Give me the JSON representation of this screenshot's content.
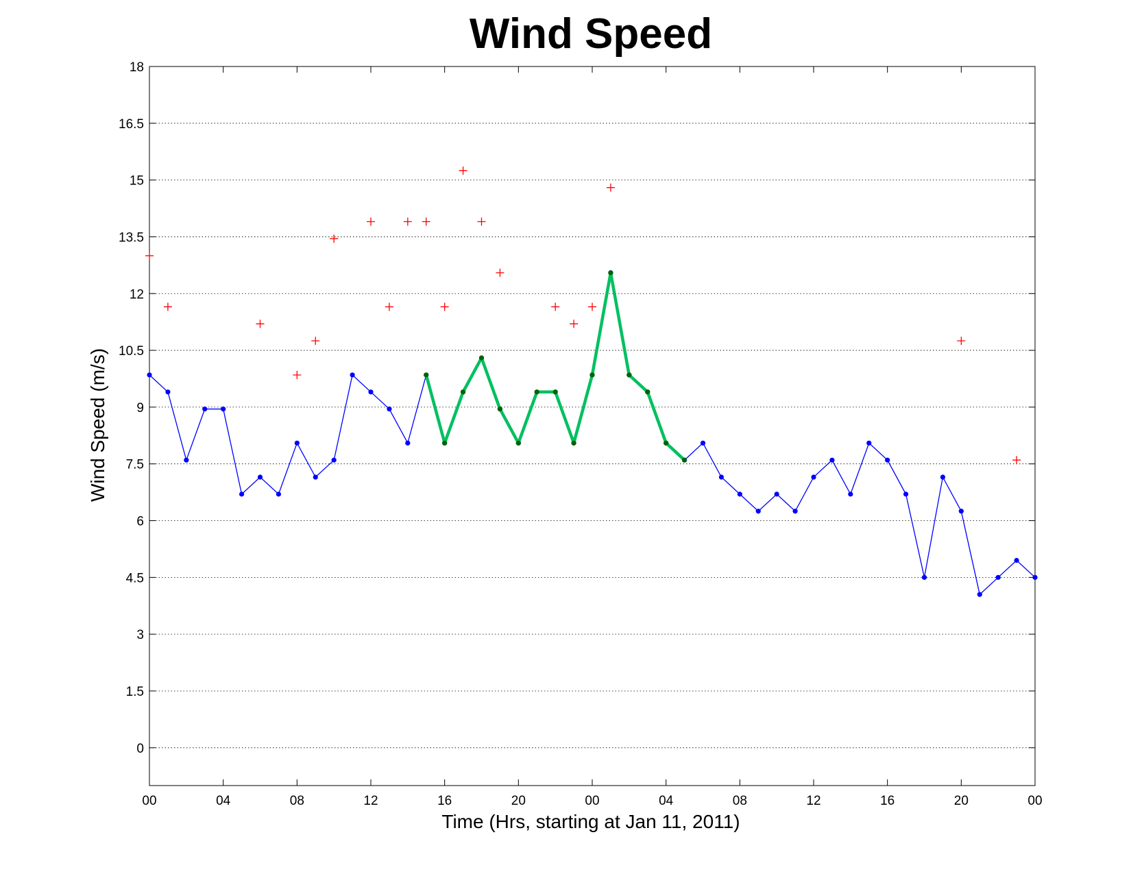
{
  "chart_data": {
    "type": "line",
    "title": "Wind Speed",
    "xlabel": "Time (Hrs, starting at Jan 11, 2011)",
    "ylabel": "Wind Speed (m/s)",
    "ylim": [
      -1,
      18
    ],
    "xlim": [
      "2011-01-11 00:00",
      "2011-01-13 00:00"
    ],
    "yticks": [
      "0",
      "1.5",
      "3",
      "4.5",
      "6",
      "7.5",
      "9",
      "10.5",
      "12",
      "13.5",
      "15",
      "16.5",
      "18"
    ],
    "xtick_labels": [
      "00",
      "04",
      "08",
      "12",
      "16",
      "20",
      "00",
      "04",
      "08",
      "12",
      "16",
      "20",
      "00"
    ],
    "grid": "horizontal dotted",
    "series": [
      {
        "style": "blue line with dot markers",
        "color": "#0000ff",
        "x": [
          "2011-01-11 00:00",
          "2011-01-11 01:00",
          "2011-01-11 02:00",
          "2011-01-11 03:00",
          "2011-01-11 04:00",
          "2011-01-11 05:00",
          "2011-01-11 06:00",
          "2011-01-11 07:00",
          "2011-01-11 08:00",
          "2011-01-11 09:00",
          "2011-01-11 10:00",
          "2011-01-11 11:00",
          "2011-01-11 12:00",
          "2011-01-11 13:00",
          "2011-01-11 14:00",
          "2011-01-11 15:00",
          "2011-01-11 16:00",
          "2011-01-11 17:00",
          "2011-01-11 18:00",
          "2011-01-11 19:00",
          "2011-01-11 20:00",
          "2011-01-11 21:00",
          "2011-01-11 22:00",
          "2011-01-11 23:00",
          "2011-01-12 00:00",
          "2011-01-12 01:00",
          "2011-01-12 02:00",
          "2011-01-12 03:00",
          "2011-01-12 04:00",
          "2011-01-12 05:00",
          "2011-01-12 06:00",
          "2011-01-12 07:00",
          "2011-01-12 08:00",
          "2011-01-12 09:00",
          "2011-01-12 10:00",
          "2011-01-12 11:00",
          "2011-01-12 12:00",
          "2011-01-12 13:00",
          "2011-01-12 14:00",
          "2011-01-12 15:00",
          "2011-01-12 16:00",
          "2011-01-12 17:00",
          "2011-01-12 18:00",
          "2011-01-12 19:00",
          "2011-01-12 20:00",
          "2011-01-12 21:00",
          "2011-01-12 22:00",
          "2011-01-12 23:00",
          "2011-01-13 00:00"
        ],
        "values": [
          9.85,
          9.4,
          7.6,
          8.95,
          8.95,
          6.7,
          7.15,
          6.7,
          8.05,
          7.15,
          7.6,
          9.85,
          9.4,
          8.95,
          8.05,
          9.85,
          8.05,
          9.4,
          10.3,
          8.95,
          8.05,
          9.4,
          9.4,
          8.05,
          9.85,
          12.55,
          9.85,
          9.4,
          8.05,
          7.6,
          8.05,
          7.15,
          6.7,
          6.25,
          6.7,
          6.25,
          7.15,
          7.6,
          6.7,
          8.05,
          7.6,
          6.7,
          4.5,
          7.15,
          6.25,
          4.05,
          4.5,
          4.95,
          4.5
        ]
      },
      {
        "style": "thick green highlighted segment",
        "color": "#00c060",
        "x": [
          "2011-01-11 15:00",
          "2011-01-11 16:00",
          "2011-01-11 17:00",
          "2011-01-11 18:00",
          "2011-01-11 19:00",
          "2011-01-11 20:00",
          "2011-01-11 21:00",
          "2011-01-11 22:00",
          "2011-01-11 23:00",
          "2011-01-12 00:00",
          "2011-01-12 01:00",
          "2011-01-12 02:00",
          "2011-01-12 03:00",
          "2011-01-12 04:00",
          "2011-01-12 05:00"
        ],
        "values": [
          9.85,
          8.05,
          9.4,
          10.3,
          8.95,
          8.05,
          9.4,
          9.4,
          8.05,
          9.85,
          12.55,
          9.85,
          9.4,
          8.05,
          7.6
        ]
      },
      {
        "style": "red plus markers",
        "color": "#ff0000",
        "x": [
          "2011-01-11 00:00",
          "2011-01-11 01:00",
          "2011-01-11 06:00",
          "2011-01-11 08:00",
          "2011-01-11 09:00",
          "2011-01-11 10:00",
          "2011-01-11 12:00",
          "2011-01-11 13:00",
          "2011-01-11 14:00",
          "2011-01-11 15:00",
          "2011-01-11 16:00",
          "2011-01-11 17:00",
          "2011-01-11 18:00",
          "2011-01-11 19:00",
          "2011-01-11 22:00",
          "2011-01-11 23:00",
          "2011-01-12 00:00",
          "2011-01-12 01:00",
          "2011-01-12 20:00",
          "2011-01-12 23:00"
        ],
        "values": [
          13,
          11.65,
          11.2,
          9.85,
          10.75,
          13.45,
          13.9,
          11.65,
          13.9,
          13.9,
          11.65,
          15.25,
          13.9,
          12.55,
          11.65,
          11.2,
          11.65,
          14.8,
          10.75,
          7.6
        ]
      }
    ]
  }
}
